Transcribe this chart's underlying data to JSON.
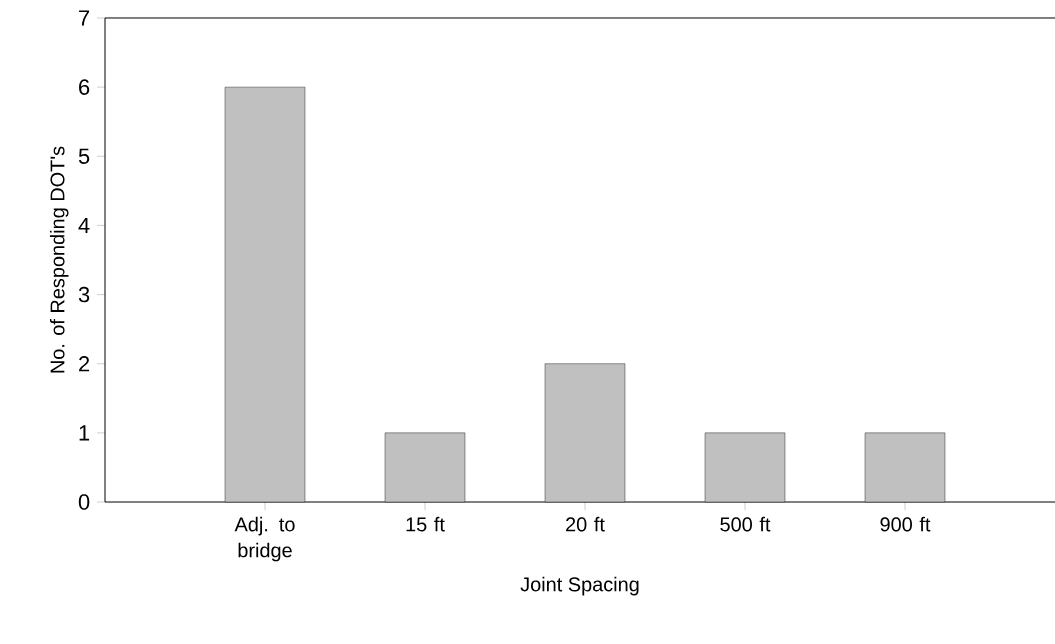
{
  "chart_data": {
    "type": "bar",
    "xlabel": "Joint Spacing",
    "ylabel": "No. of Responding DOT's",
    "categories": [
      "Adj. to bridge",
      "15 ft",
      "20 ft",
      "500 ft",
      "900 ft"
    ],
    "values": [
      6,
      1,
      2,
      1,
      1
    ],
    "color": "#c0c0c0",
    "ylim": [
      0,
      7
    ],
    "yticks": [
      0,
      1,
      2,
      3,
      4,
      5,
      6,
      7
    ],
    "grid": false
  }
}
